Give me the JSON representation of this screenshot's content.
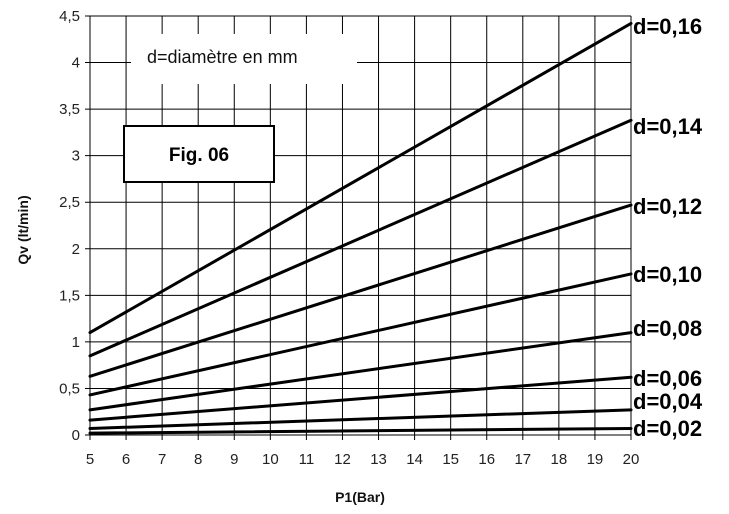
{
  "chart_data": {
    "type": "line",
    "xlabel": "P1(Bar)",
    "ylabel": "Qv (lt/min)",
    "xlim": [
      5,
      20
    ],
    "ylim": [
      0,
      4.5
    ],
    "x_ticks": [
      "5",
      "6",
      "7",
      "8",
      "9",
      "10",
      "11",
      "12",
      "13",
      "14",
      "15",
      "16",
      "17",
      "18",
      "19",
      "20"
    ],
    "y_ticks": [
      "0",
      "0,5",
      "1",
      "1,5",
      "2",
      "2,5",
      "3",
      "3,5",
      "4",
      "4,5"
    ],
    "grid": true,
    "annotation": "d=diamètre en mm",
    "figure_label": "Fig. 06",
    "x": [
      5,
      20
    ],
    "series": [
      {
        "name": "d=0,16",
        "values": [
          1.1,
          4.42
        ]
      },
      {
        "name": "d=0,14",
        "values": [
          0.85,
          3.38
        ]
      },
      {
        "name": "d=0,12",
        "values": [
          0.63,
          2.47
        ]
      },
      {
        "name": "d=0,10",
        "values": [
          0.43,
          1.73
        ]
      },
      {
        "name": "d=0,08",
        "values": [
          0.27,
          1.1
        ]
      },
      {
        "name": "d=0,06",
        "values": [
          0.16,
          0.62
        ]
      },
      {
        "name": "d=0,04",
        "values": [
          0.07,
          0.27
        ]
      },
      {
        "name": "d=0,02",
        "values": [
          0.02,
          0.07
        ]
      }
    ]
  }
}
